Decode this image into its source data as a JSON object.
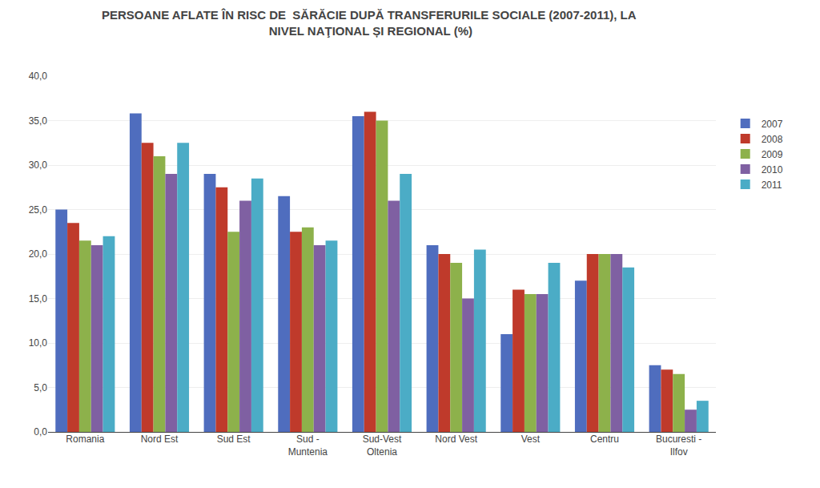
{
  "chart_data": {
    "type": "bar",
    "title": "PERSOANE AFLATE ÎN RISC DE  SĂRĂCIE DUPĂ TRANSFERURILE SOCIALE (2007-2011), LA\n NIVEL NAŢIONAL ȘI REGIONAL (%)",
    "categories": [
      "Romania",
      "Nord Est",
      "Sud Est",
      "Sud -\nMuntenia",
      "Sud-Vest\nOltenia",
      "Nord Vest",
      "Vest",
      "Centru",
      "Bucuresti -\nIlfov"
    ],
    "series": [
      {
        "name": "2007",
        "color": "#4f6dbe",
        "values": [
          25.0,
          35.8,
          29.0,
          26.5,
          35.5,
          21.0,
          11.0,
          17.0,
          7.5
        ]
      },
      {
        "name": "2008",
        "color": "#bf3a2b",
        "values": [
          23.5,
          32.5,
          27.5,
          22.5,
          36.0,
          20.0,
          16.0,
          20.0,
          7.0
        ]
      },
      {
        "name": "2009",
        "color": "#8db14b",
        "values": [
          21.5,
          31.0,
          22.5,
          23.0,
          35.0,
          19.0,
          15.5,
          20.0,
          6.5
        ]
      },
      {
        "name": "2010",
        "color": "#7f60a2",
        "values": [
          21.0,
          29.0,
          26.0,
          21.0,
          26.0,
          15.0,
          15.5,
          20.0,
          2.5
        ]
      },
      {
        "name": "2011",
        "color": "#4bacc6",
        "values": [
          22.0,
          32.5,
          28.5,
          21.5,
          29.0,
          20.5,
          19.0,
          18.5,
          3.5
        ]
      }
    ],
    "ylim": [
      0,
      40
    ],
    "yticks": [
      {
        "value": 0,
        "label": "0,0"
      },
      {
        "value": 5,
        "label": "5,0"
      },
      {
        "value": 10,
        "label": "10,0"
      },
      {
        "value": 15,
        "label": "15,0"
      },
      {
        "value": 20,
        "label": "20,0"
      },
      {
        "value": 25,
        "label": "25,0"
      },
      {
        "value": 30,
        "label": "30,0"
      },
      {
        "value": 35,
        "label": "35,0"
      },
      {
        "value": 40,
        "label": "40,0"
      }
    ],
    "grid": true,
    "legend": "right"
  }
}
